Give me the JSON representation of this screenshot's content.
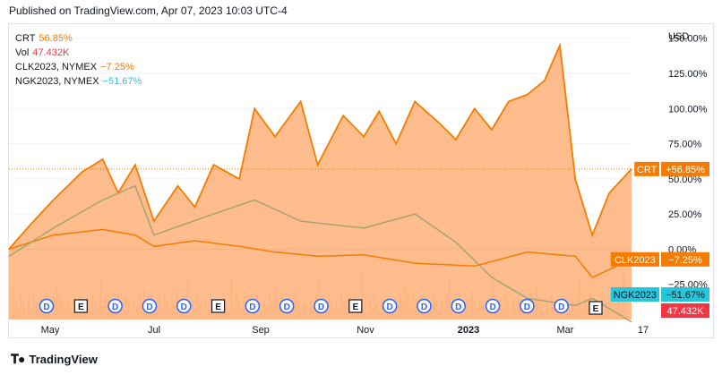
{
  "header": {
    "published": "Published on TradingView.com, Apr 07, 2023 10:03 UTC-4"
  },
  "legend": [
    {
      "symbol": "CRT",
      "value": "56.85%",
      "color": "#f57c00"
    },
    {
      "symbol": "Vol",
      "value": "47.432K",
      "color": "#f23645"
    },
    {
      "symbol": "CLK2023, NYMEX",
      "value": "−7.25%",
      "color": "#f57c00"
    },
    {
      "symbol": "NGK2023, NYMEX",
      "value": "−51.67%",
      "color": "#26c6da"
    }
  ],
  "footer": {
    "brand": "TradingView"
  },
  "colors": {
    "crt": "#f57c00",
    "crt_fill": "#ffb27a",
    "clk": "#f57c00",
    "ngk": "#a5a371",
    "vol": "#f23645",
    "ngk_label": "#26c6da"
  },
  "chart_data": {
    "type": "area",
    "x_labels": [
      "May",
      "Jul",
      "Sep",
      "Nov",
      "2023",
      "Mar",
      "17"
    ],
    "y_unit": "USD",
    "y_ticks": [
      150,
      125,
      100,
      75,
      50,
      25,
      0,
      -25
    ],
    "y_tick_labels": [
      "150.00%",
      "125.00%",
      "100.00%",
      "75.00%",
      "50.00%",
      "25.00%",
      "0.00%",
      "−25.00%"
    ],
    "ylim": [
      -50,
      160
    ],
    "x_date_range": [
      "2022-04-07",
      "2023-04-07"
    ],
    "series": [
      {
        "name": "CRT",
        "type": "area",
        "x": [
          "2022-04-07",
          "2022-04-20",
          "2022-05-03",
          "2022-05-20",
          "2022-06-01",
          "2022-06-10",
          "2022-06-20",
          "2022-07-01",
          "2022-07-15",
          "2022-07-25",
          "2022-08-05",
          "2022-08-20",
          "2022-08-29",
          "2022-09-10",
          "2022-09-25",
          "2022-10-05",
          "2022-10-20",
          "2022-11-01",
          "2022-11-10",
          "2022-11-20",
          "2022-12-01",
          "2022-12-15",
          "2022-12-25",
          "2023-01-05",
          "2023-01-15",
          "2023-01-25",
          "2023-02-05",
          "2023-02-15",
          "2023-02-24",
          "2023-03-05",
          "2023-03-15",
          "2023-03-25",
          "2023-04-07"
        ],
        "y": [
          0,
          18,
          35,
          55,
          64,
          40,
          60,
          20,
          45,
          30,
          60,
          50,
          100,
          80,
          105,
          60,
          95,
          80,
          98,
          75,
          105,
          90,
          78,
          100,
          85,
          105,
          110,
          120,
          145,
          50,
          10,
          40,
          57
        ]
      },
      {
        "name": "CLK2023, NYMEX",
        "type": "line",
        "x": [
          "2022-04-07",
          "2022-05-03",
          "2022-06-01",
          "2022-06-20",
          "2022-07-01",
          "2022-07-25",
          "2022-08-20",
          "2022-09-10",
          "2022-10-05",
          "2022-11-01",
          "2022-12-01",
          "2023-01-05",
          "2023-02-05",
          "2023-03-05",
          "2023-03-15",
          "2023-04-07"
        ],
        "y": [
          0,
          10,
          14,
          10,
          2,
          6,
          2,
          -2,
          -5,
          -4,
          -10,
          -12,
          -2,
          -5,
          -20,
          -7.25
        ]
      },
      {
        "name": "NGK2023, NYMEX",
        "type": "line",
        "x": [
          "2022-04-07",
          "2022-05-03",
          "2022-06-01",
          "2022-06-20",
          "2022-07-01",
          "2022-08-05",
          "2022-08-29",
          "2022-09-25",
          "2022-11-01",
          "2022-12-01",
          "2022-12-25",
          "2023-01-15",
          "2023-02-05",
          "2023-03-05",
          "2023-03-15",
          "2023-04-07"
        ],
        "y": [
          -5,
          15,
          35,
          45,
          10,
          25,
          35,
          20,
          15,
          25,
          5,
          -20,
          -35,
          -40,
          -35,
          -51.67
        ]
      }
    ],
    "volume_markers": [
      "D",
      "E",
      "D",
      "D",
      "D",
      "E",
      "D",
      "D",
      "D",
      "E",
      "D",
      "D",
      "D",
      "D",
      "D",
      "D",
      "E"
    ],
    "price_labels": [
      {
        "text": "CRT",
        "value": "+56.85%"
      },
      {
        "text": "CLK2023",
        "value": "−7.25%"
      },
      {
        "text": "NGK2023",
        "value": "−51.67%"
      },
      {
        "text": "",
        "value": "47.432K"
      }
    ]
  }
}
